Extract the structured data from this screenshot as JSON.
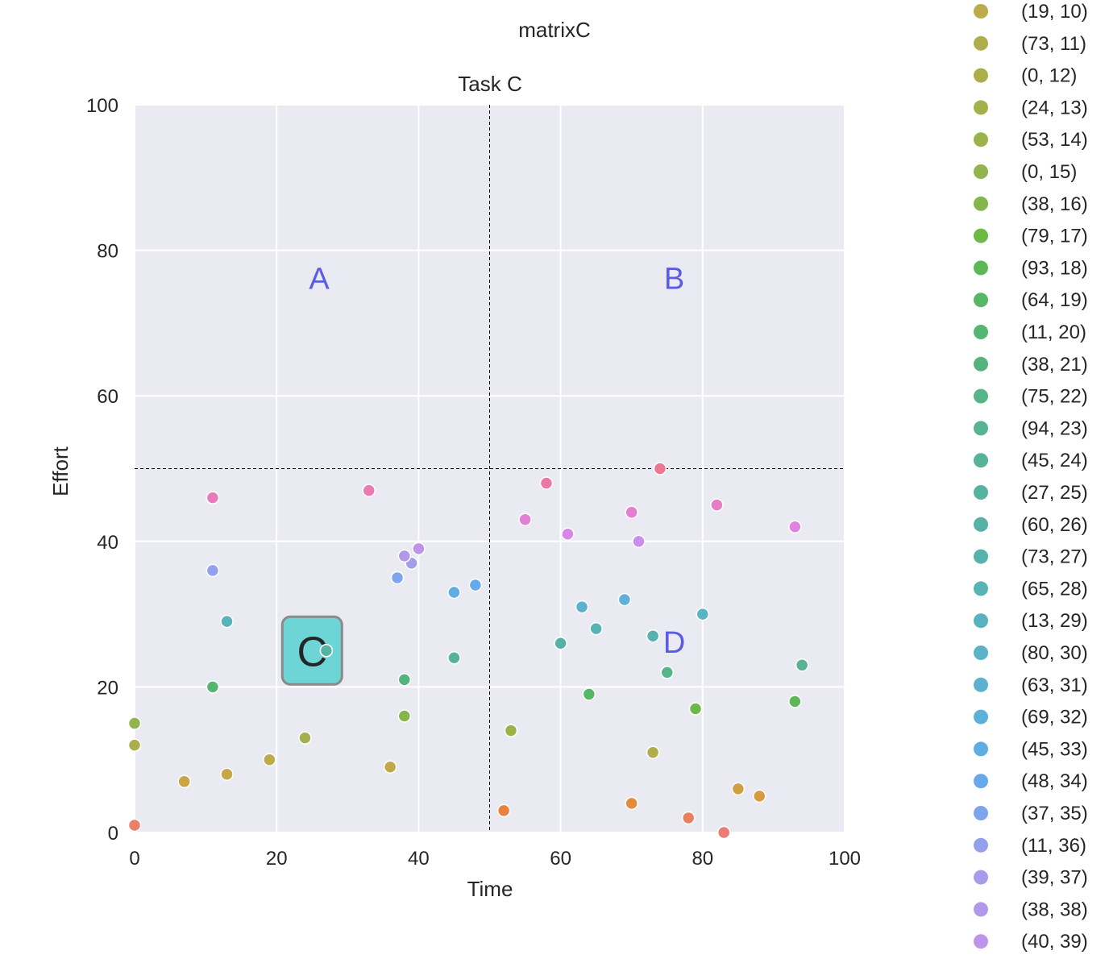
{
  "figure_title": "matrixC",
  "chart_data": {
    "type": "scatter",
    "title": "Task C",
    "xlabel": "Time",
    "ylabel": "Effort",
    "xlim": [
      0,
      100
    ],
    "ylim": [
      0,
      100
    ],
    "xticks": [
      0,
      20,
      40,
      60,
      80,
      100
    ],
    "yticks": [
      0,
      20,
      40,
      60,
      80,
      100
    ],
    "grid": true,
    "background": "#eaeaf2",
    "divider_x": 50,
    "divider_y": 50,
    "quadrant_labels": [
      {
        "text": "A",
        "x": 26,
        "y": 76,
        "color": "#5b5be6"
      },
      {
        "text": "B",
        "x": 76,
        "y": 76,
        "color": "#5b5be6"
      },
      {
        "text": "D",
        "x": 76,
        "y": 26,
        "color": "#5b5be6"
      }
    ],
    "highlight_label": {
      "text": "C",
      "x": 25,
      "y": 25,
      "color": "#6dd5d5"
    },
    "points": [
      {
        "x": 0,
        "y": 1,
        "color": "#e8806a"
      },
      {
        "x": 83,
        "y": 0,
        "color": "#ea7c76"
      },
      {
        "x": 52,
        "y": 3,
        "color": "#e8823f"
      },
      {
        "x": 70,
        "y": 4,
        "color": "#e28c3c"
      },
      {
        "x": 78,
        "y": 2,
        "color": "#e87f5d"
      },
      {
        "x": 88,
        "y": 5,
        "color": "#d99a3f"
      },
      {
        "x": 85,
        "y": 6,
        "color": "#d19f43"
      },
      {
        "x": 7,
        "y": 7,
        "color": "#cca444"
      },
      {
        "x": 13,
        "y": 8,
        "color": "#c6a746"
      },
      {
        "x": 36,
        "y": 9,
        "color": "#c1a949"
      },
      {
        "x": 19,
        "y": 10,
        "color": "#bbab4b"
      },
      {
        "x": 73,
        "y": 11,
        "color": "#b0ad4b"
      },
      {
        "x": 0,
        "y": 12,
        "color": "#aaaf4c"
      },
      {
        "x": 24,
        "y": 13,
        "color": "#a3b04b"
      },
      {
        "x": 53,
        "y": 14,
        "color": "#9bb24b"
      },
      {
        "x": 0,
        "y": 15,
        "color": "#92b44c"
      },
      {
        "x": 38,
        "y": 16,
        "color": "#84b64c"
      },
      {
        "x": 79,
        "y": 17,
        "color": "#6cb944"
      },
      {
        "x": 93,
        "y": 18,
        "color": "#5cb757"
      },
      {
        "x": 64,
        "y": 19,
        "color": "#56b767"
      },
      {
        "x": 11,
        "y": 20,
        "color": "#55b573"
      },
      {
        "x": 38,
        "y": 21,
        "color": "#55b47e"
      },
      {
        "x": 75,
        "y": 22,
        "color": "#56b588"
      },
      {
        "x": 94,
        "y": 23,
        "color": "#56b490"
      },
      {
        "x": 45,
        "y": 24,
        "color": "#56b398"
      },
      {
        "x": 27,
        "y": 25,
        "color": "#56b39f"
      },
      {
        "x": 60,
        "y": 26,
        "color": "#56b2a6"
      },
      {
        "x": 73,
        "y": 27,
        "color": "#57b2ad"
      },
      {
        "x": 65,
        "y": 28,
        "color": "#58b3b5"
      },
      {
        "x": 13,
        "y": 29,
        "color": "#59b3bd"
      },
      {
        "x": 80,
        "y": 30,
        "color": "#5ab3c6"
      },
      {
        "x": 63,
        "y": 31,
        "color": "#5cb2ce"
      },
      {
        "x": 69,
        "y": 32,
        "color": "#5db0d8"
      },
      {
        "x": 45,
        "y": 33,
        "color": "#5faee2"
      },
      {
        "x": 48,
        "y": 34,
        "color": "#68a8ec"
      },
      {
        "x": 37,
        "y": 35,
        "color": "#7ea4ee"
      },
      {
        "x": 11,
        "y": 36,
        "color": "#93a1ec"
      },
      {
        "x": 39,
        "y": 37,
        "color": "#a49dea"
      },
      {
        "x": 38,
        "y": 38,
        "color": "#b298ea"
      },
      {
        "x": 40,
        "y": 39,
        "color": "#be93ea"
      },
      {
        "x": 71,
        "y": 40,
        "color": "#c98eea"
      },
      {
        "x": 61,
        "y": 41,
        "color": "#d688e6"
      },
      {
        "x": 93,
        "y": 42,
        "color": "#df83df"
      },
      {
        "x": 55,
        "y": 43,
        "color": "#e37fd6"
      },
      {
        "x": 70,
        "y": 44,
        "color": "#e47ecf"
      },
      {
        "x": 82,
        "y": 45,
        "color": "#e67dc7"
      },
      {
        "x": 11,
        "y": 46,
        "color": "#e87bbd"
      },
      {
        "x": 33,
        "y": 47,
        "color": "#e97ab3"
      },
      {
        "x": 58,
        "y": 48,
        "color": "#ea79a7"
      },
      {
        "x": 74,
        "y": 50,
        "color": "#eb7891"
      }
    ],
    "legend": {
      "position": "right",
      "entries": [
        {
          "label": "(19, 10)",
          "color": "#bbab4b"
        },
        {
          "label": "(73, 11)",
          "color": "#b0ad4b"
        },
        {
          "label": "(0, 12)",
          "color": "#aaaf4c"
        },
        {
          "label": "(24, 13)",
          "color": "#a3b04b"
        },
        {
          "label": "(53, 14)",
          "color": "#9bb24b"
        },
        {
          "label": "(0, 15)",
          "color": "#92b44c"
        },
        {
          "label": "(38, 16)",
          "color": "#84b64c"
        },
        {
          "label": "(79, 17)",
          "color": "#6cb944"
        },
        {
          "label": "(93, 18)",
          "color": "#5cb757"
        },
        {
          "label": "(64, 19)",
          "color": "#56b767"
        },
        {
          "label": "(11, 20)",
          "color": "#55b573"
        },
        {
          "label": "(38, 21)",
          "color": "#55b47e"
        },
        {
          "label": "(75, 22)",
          "color": "#56b588"
        },
        {
          "label": "(94, 23)",
          "color": "#56b490"
        },
        {
          "label": "(45, 24)",
          "color": "#56b398"
        },
        {
          "label": "(27, 25)",
          "color": "#56b39f"
        },
        {
          "label": "(60, 26)",
          "color": "#56b2a6"
        },
        {
          "label": "(73, 27)",
          "color": "#57b2ad"
        },
        {
          "label": "(65, 28)",
          "color": "#58b3b5"
        },
        {
          "label": "(13, 29)",
          "color": "#59b3bd"
        },
        {
          "label": "(80, 30)",
          "color": "#5ab3c6"
        },
        {
          "label": "(63, 31)",
          "color": "#5cb2ce"
        },
        {
          "label": "(69, 32)",
          "color": "#5db0d8"
        },
        {
          "label": "(45, 33)",
          "color": "#5faee2"
        },
        {
          "label": "(48, 34)",
          "color": "#68a8ec"
        },
        {
          "label": "(37, 35)",
          "color": "#7ea4ee"
        },
        {
          "label": "(11, 36)",
          "color": "#93a1ec"
        },
        {
          "label": "(39, 37)",
          "color": "#a49dea"
        },
        {
          "label": "(38, 38)",
          "color": "#b298ea"
        },
        {
          "label": "(40, 39)",
          "color": "#be93ea"
        }
      ]
    }
  }
}
